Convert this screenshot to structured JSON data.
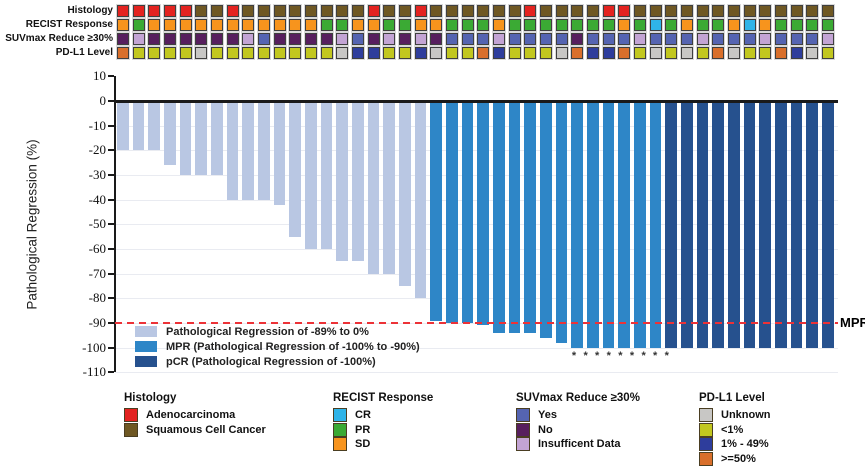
{
  "palette": {
    "red": "#e32320",
    "brown": "#6f5823",
    "orange": "#f7941d",
    "green": "#3baa34",
    "cyan": "#2fb4e8",
    "suvYes": "#5564b1",
    "suvNo": "#571f5e",
    "suvIns": "#c3a4d4",
    "gray": "#c8c7c5",
    "olive": "#c2c71f",
    "pdBlue": "#2e3d9c",
    "orangered": "#d96f2b",
    "barLight": "#b9c7e3",
    "barMpr": "#2e86c7",
    "barPcr": "#26518e",
    "redline": "#ec3237"
  },
  "annotation_rows": [
    {
      "label": "Histology",
      "cells": [
        "red",
        "red",
        "red",
        "red",
        "red",
        "brown",
        "brown",
        "red",
        "brown",
        "brown",
        "brown",
        "brown",
        "brown",
        "brown",
        "brown",
        "brown",
        "red",
        "brown",
        "brown",
        "red",
        "brown",
        "brown",
        "brown",
        "brown",
        "brown",
        "brown",
        "red",
        "brown",
        "brown",
        "brown",
        "brown",
        "red",
        "red",
        "brown",
        "brown",
        "brown",
        "brown",
        "brown",
        "brown",
        "brown",
        "brown",
        "brown",
        "brown",
        "brown",
        "brown",
        "brown"
      ]
    },
    {
      "label": "RECIST Response",
      "cells": [
        "orange",
        "green",
        "orange",
        "orange",
        "orange",
        "orange",
        "orange",
        "orange",
        "orange",
        "orange",
        "orange",
        "orange",
        "orange",
        "green",
        "green",
        "orange",
        "orange",
        "green",
        "green",
        "orange",
        "orange",
        "green",
        "green",
        "green",
        "orange",
        "green",
        "green",
        "green",
        "green",
        "green",
        "green",
        "green",
        "orange",
        "green",
        "cyan",
        "green",
        "orange",
        "green",
        "green",
        "orange",
        "cyan",
        "orange",
        "green",
        "green",
        "green",
        "green"
      ]
    },
    {
      "label": "SUVmax Reduce ≥30%",
      "cells": [
        "suvNo",
        "suvIns",
        "suvNo",
        "suvNo",
        "suvNo",
        "suvNo",
        "suvNo",
        "suvNo",
        "suvIns",
        "suvYes",
        "suvNo",
        "suvNo",
        "suvNo",
        "suvNo",
        "suvIns",
        "suvYes",
        "suvNo",
        "suvIns",
        "suvNo",
        "suvIns",
        "suvNo",
        "suvYes",
        "suvYes",
        "suvYes",
        "suvIns",
        "suvYes",
        "suvYes",
        "suvYes",
        "suvYes",
        "suvNo",
        "suvYes",
        "suvYes",
        "suvYes",
        "suvIns",
        "suvYes",
        "suvYes",
        "suvYes",
        "suvIns",
        "suvYes",
        "suvYes",
        "suvYes",
        "suvIns",
        "suvYes",
        "suvYes",
        "suvYes",
        "suvIns"
      ]
    },
    {
      "label": "PD-L1 Level",
      "cells": [
        "orangered",
        "olive",
        "olive",
        "olive",
        "olive",
        "gray",
        "olive",
        "olive",
        "olive",
        "olive",
        "olive",
        "olive",
        "olive",
        "olive",
        "gray",
        "pdBlue",
        "pdBlue",
        "olive",
        "olive",
        "pdBlue",
        "gray",
        "olive",
        "olive",
        "orangered",
        "pdBlue",
        "olive",
        "olive",
        "olive",
        "gray",
        "orangered",
        "pdBlue",
        "pdBlue",
        "orangered",
        "olive",
        "gray",
        "olive",
        "gray",
        "olive",
        "orangered",
        "gray",
        "olive",
        "olive",
        "orangered",
        "pdBlue",
        "gray",
        "olive"
      ]
    }
  ],
  "chart_data": {
    "type": "bar",
    "ylabel": "Pathological Regression (%)",
    "ylim": [
      -110,
      10
    ],
    "yticks": [
      "10",
      "0",
      "-10",
      "-20",
      "-30",
      "-40",
      "-50",
      "-60",
      "-70",
      "-80",
      "-90",
      "-100",
      "-110"
    ],
    "values": [
      -20,
      -20,
      -20,
      -26,
      -30,
      -30,
      -30,
      -40,
      -40,
      -40,
      -42,
      -55,
      -60,
      -60,
      -65,
      -65,
      -70,
      -70,
      -75,
      -80,
      -89,
      -90,
      -90,
      -91,
      -94,
      -94,
      -94,
      -96,
      -98,
      -100,
      -100,
      -100,
      -100,
      -100,
      -100,
      -100,
      -100,
      -100,
      -100,
      -100,
      -100,
      -100,
      -100,
      -100,
      -100,
      -100
    ],
    "groups": [
      "reg",
      "reg",
      "reg",
      "reg",
      "reg",
      "reg",
      "reg",
      "reg",
      "reg",
      "reg",
      "reg",
      "reg",
      "reg",
      "reg",
      "reg",
      "reg",
      "reg",
      "reg",
      "reg",
      "reg",
      "mpr",
      "mpr",
      "mpr",
      "mpr",
      "mpr",
      "mpr",
      "mpr",
      "mpr",
      "mpr",
      "mpr",
      "mpr",
      "mpr",
      "mpr",
      "mpr",
      "mpr",
      "pcr",
      "pcr",
      "pcr",
      "pcr",
      "pcr",
      "pcr",
      "pcr",
      "pcr",
      "pcr",
      "pcr",
      "pcr"
    ],
    "group_colors": {
      "reg": "barLight",
      "mpr": "barMpr",
      "pcr": "barPcr"
    },
    "threshold": {
      "value": -90,
      "label": "MPR"
    },
    "asterisks": {
      "count": 9,
      "symbol": "*"
    },
    "grid": "horizontal, light gray",
    "legend_position": "inside bottom-left",
    "inplot_legend": [
      {
        "color": "barLight",
        "label": "Pathological Regression of -89% to 0%"
      },
      {
        "color": "barMpr",
        "label": "MPR (Pathological Regression of -100% to -90%)"
      },
      {
        "color": "barPcr",
        "label": "pCR (Pathological Regression of -100%)"
      }
    ]
  },
  "bottom_legend": [
    {
      "title": "Histology",
      "items": [
        {
          "color": "red",
          "label": "Adenocarcinoma"
        },
        {
          "color": "brown",
          "label": "Squamous Cell Cancer"
        }
      ]
    },
    {
      "title": "RECIST Response",
      "items": [
        {
          "color": "cyan",
          "label": "CR"
        },
        {
          "color": "green",
          "label": "PR"
        },
        {
          "color": "orange",
          "label": "SD"
        }
      ]
    },
    {
      "title": "SUVmax Reduce ≥30%",
      "items": [
        {
          "color": "suvYes",
          "label": "Yes"
        },
        {
          "color": "suvNo",
          "label": "No"
        },
        {
          "color": "suvIns",
          "label": "Insufficent Data"
        }
      ]
    },
    {
      "title": "PD-L1 Level",
      "items": [
        {
          "color": "gray",
          "label": "Unknown"
        },
        {
          "color": "olive",
          "label": "<1%"
        },
        {
          "color": "pdBlue",
          "label": "1% - 49%"
        },
        {
          "color": "orangered",
          "label": ">=50%"
        }
      ]
    }
  ]
}
